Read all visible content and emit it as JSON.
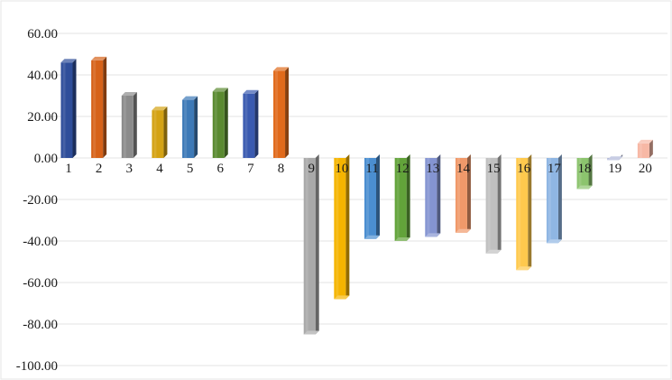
{
  "chart_data": {
    "type": "bar",
    "style": "3d-column",
    "grid": true,
    "legend": "none",
    "ylim": [
      -100,
      60
    ],
    "ytick_step": 20,
    "ytick_labels": [
      "60.00",
      "40.00",
      "20.00",
      "0.00",
      "-20.00",
      "-40.00",
      "-60.00",
      "-80.00",
      "-100.00"
    ],
    "categories": [
      "1",
      "2",
      "3",
      "4",
      "5",
      "6",
      "7",
      "8",
      "9",
      "10",
      "11",
      "12",
      "13",
      "14",
      "15",
      "16",
      "17",
      "18",
      "19",
      "20"
    ],
    "values": [
      46,
      47,
      30,
      23,
      28,
      32,
      31,
      42,
      -85,
      -68,
      -39,
      -40,
      -38,
      -36,
      -46,
      -54,
      -41,
      -15,
      -1,
      7
    ],
    "colors": [
      "#2f4e9a",
      "#d66219",
      "#8b8b8b",
      "#d4a213",
      "#3d79b7",
      "#5a8a30",
      "#3a5ab0",
      "#e06a1b",
      "#a9a9a9",
      "#f5b400",
      "#4b8ed0",
      "#62a33a",
      "#8494d1",
      "#f0996a",
      "#c0c0c0",
      "#ffc94d",
      "#8fb6e3",
      "#8cc46e",
      "#b0b8d8",
      "#f7b8a5"
    ]
  }
}
